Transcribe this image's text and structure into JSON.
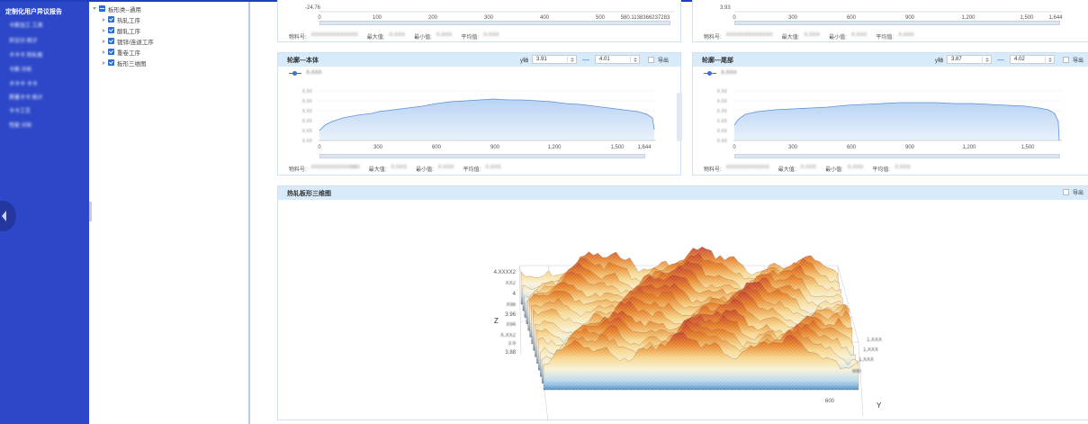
{
  "nav": {
    "title": "定制化用户异议报告",
    "items": [
      "卡斯加工 工具",
      "异议分 统计",
      "卡卡卡 热轧板",
      "卡斯 分析",
      "卡卡卡 卡卡",
      "质量卡卡 统计",
      "卡卡工艺",
      "性能 分析"
    ]
  },
  "tree": {
    "root": "板形类--通用",
    "children": [
      "热轧工序",
      "酸轧工序",
      "镀锌/连退工序",
      "重卷工序",
      "板形三维图"
    ]
  },
  "top_left": {
    "ytick_top": "-24.76",
    "xticks": [
      "0",
      "100",
      "200",
      "300",
      "400",
      "500",
      "580.1138366237283"
    ],
    "info_labels": [
      "物料号:",
      "最大值:",
      "最小值:",
      "平均值:"
    ],
    "info_values": [
      "XXXXXXXXXXXXX",
      "X.XXX",
      "X.XXX",
      "X.XXX"
    ]
  },
  "top_right": {
    "ytick_top": "3.93",
    "xticks": [
      "0",
      "300",
      "600",
      "900",
      "1,200",
      "1,500",
      "1,644"
    ],
    "info_labels": [
      "物料号:",
      "最大值:",
      "最小值:",
      "平均值:"
    ],
    "info_values": [
      "XXXXXXXXXXXXX",
      "X.XXX",
      "X.XXX",
      "X.XXX"
    ]
  },
  "panel_body": {
    "title": "轮廓—本体",
    "y_label": "y轴",
    "y_from": "3.91",
    "arrow": "—",
    "y_to": "4.01",
    "export": "导出",
    "legend": "X.XXX",
    "info_labels": [
      "物料号:",
      "最大值:",
      "最小值:",
      "平均值:"
    ],
    "info_values": [
      "XXXXXXXXXXX680",
      "X.XXX",
      "X.XXX",
      "X.XXX"
    ],
    "xticks": [
      "0",
      "300",
      "600",
      "900",
      "1,200",
      "1,500",
      "1,644"
    ],
    "yticks": [
      "X.XX",
      "X.XX",
      "X.XX",
      "X.XX",
      "X.XX",
      "X.XX"
    ]
  },
  "panel_tail": {
    "title": "轮廓—尾部",
    "y_label": "y轴",
    "y_from": "3.87",
    "arrow": "—",
    "y_to": "4.02",
    "export": "导出",
    "legend": "X.XXX",
    "info_labels": [
      "物料号:",
      "最大值:",
      "最小值:",
      "平均值:"
    ],
    "info_values": [
      "XXXXXXXXXXXX",
      "X.XXX",
      "X.XXX",
      "X.XXX"
    ],
    "xticks": [
      "0",
      "300",
      "600",
      "900",
      "1,200",
      "1,500"
    ],
    "yticks": [
      "X.XX",
      "X.XX",
      "X.XX",
      "X.XX",
      "X.XX",
      "X.XX"
    ]
  },
  "panel_3d": {
    "title": "热轧板形三维图",
    "export": "导出",
    "z_axis": "Z",
    "y_axis": "Y",
    "z_ticks": [
      "4.XXXX2",
      "XX2",
      "4",
      "X98",
      "3.96",
      "X94",
      "X.XX2",
      "3.9",
      "3.88"
    ],
    "y_ticks": [
      "1.XXX",
      "1,XXX",
      "1,XXX",
      "990",
      "600"
    ]
  },
  "colors": {
    "nav": "#2c48c9",
    "accent": "#2d6bd6",
    "header": "#d8ebfb",
    "line": "#5b8fe0"
  }
}
